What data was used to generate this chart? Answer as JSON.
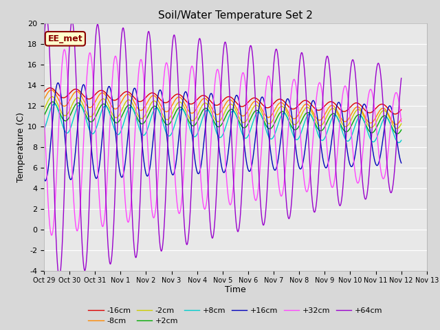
{
  "title": "Soil/Water Temperature Set 2",
  "xlabel": "Time",
  "ylabel": "Temperature (C)",
  "ylim": [
    -4,
    20
  ],
  "yticks": [
    -4,
    -2,
    0,
    2,
    4,
    6,
    8,
    10,
    12,
    14,
    16,
    18,
    20
  ],
  "xtick_labels": [
    "Oct 29",
    "Oct 30",
    "Oct 31",
    "Nov 1",
    "Nov 2",
    "Nov 3",
    "Nov 4",
    "Nov 5",
    "Nov 6",
    "Nov 7",
    "Nov 8",
    "Nov 9",
    "Nov 10",
    "Nov 11",
    "Nov 12",
    "Nov 13"
  ],
  "annotation_text": "EE_met",
  "annotation_bg": "#ffffcc",
  "annotation_border": "#8B0000",
  "fig_bg": "#d8d8d8",
  "plot_bg": "#e8e8e8",
  "series": [
    {
      "label": "-16cm",
      "color": "#dd0000"
    },
    {
      "label": "-8cm",
      "color": "#ff8800"
    },
    {
      "label": "-2cm",
      "color": "#cccc00"
    },
    {
      "+2cm": "+2cm",
      "color": "#00aa00"
    },
    {
      "+8cm": "+8cm",
      "color": "#00cccc"
    },
    {
      "+16cm": "+16cm",
      "color": "#0000cc"
    },
    {
      "+32cm": "+32cm",
      "color": "#ff44ff"
    },
    {
      "+64cm": "+64cm",
      "color": "#9900cc"
    }
  ]
}
